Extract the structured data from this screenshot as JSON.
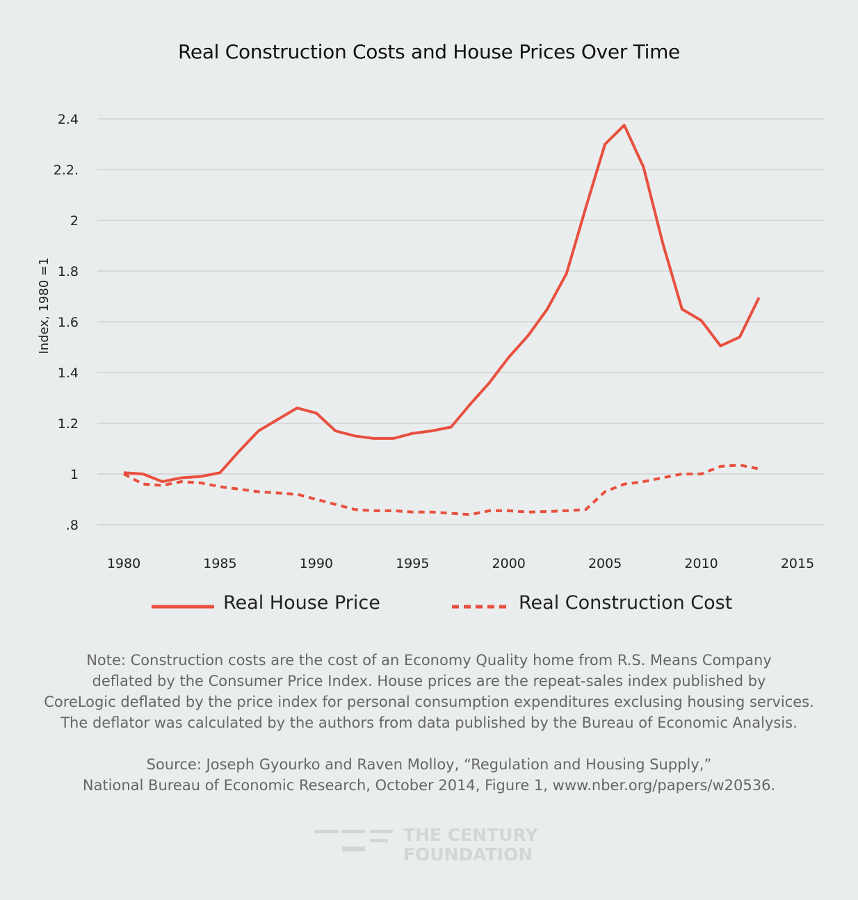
{
  "chart_data": {
    "type": "line",
    "title": "Real Construction Costs and House Prices Over Time",
    "xlabel": "",
    "ylabel": "Index, 1980 =1",
    "xlim": [
      1980,
      2015
    ],
    "ylim": [
      0.8,
      2.4
    ],
    "x_ticks": [
      "1980",
      "1985",
      "1990",
      "1995",
      "2000",
      "2005",
      "2010",
      "2015"
    ],
    "y_ticks": [
      {
        "value": 0.8,
        "label": ".8"
      },
      {
        "value": 1.0,
        "label": "1"
      },
      {
        "value": 1.2,
        "label": "1.2"
      },
      {
        "value": 1.4,
        "label": "1.4"
      },
      {
        "value": 1.6,
        "label": "1.6"
      },
      {
        "value": 1.8,
        "label": "1.8"
      },
      {
        "value": 2.0,
        "label": "2"
      },
      {
        "value": 2.2,
        "label": "2.2."
      },
      {
        "value": 2.4,
        "label": "2.4"
      }
    ],
    "grid": "horizontal",
    "legend_position": "bottom",
    "x": [
      1980,
      1981,
      1982,
      1983,
      1984,
      1985,
      1986,
      1987,
      1988,
      1989,
      1990,
      1991,
      1992,
      1993,
      1994,
      1995,
      1996,
      1997,
      1998,
      1999,
      2000,
      2001,
      2002,
      2003,
      2004,
      2005,
      2006,
      2007,
      2008,
      2009,
      2010,
      2011,
      2012,
      2013
    ],
    "series": [
      {
        "name": "Real House Price",
        "style": "solid",
        "color": "#e8503f",
        "values": [
          1.005,
          1.0,
          0.97,
          0.985,
          0.99,
          1.005,
          1.09,
          1.17,
          1.215,
          1.26,
          1.24,
          1.17,
          1.15,
          1.14,
          1.14,
          1.16,
          1.17,
          1.185,
          1.275,
          1.36,
          1.46,
          1.545,
          1.65,
          1.79,
          2.05,
          2.3,
          2.375,
          2.21,
          1.91,
          1.65,
          1.605,
          1.505,
          1.54,
          1.695
        ]
      },
      {
        "name": "Real Construction Cost",
        "style": "dashed",
        "color": "#e8503f",
        "values": [
          1.0,
          0.96,
          0.955,
          0.97,
          0.965,
          0.95,
          0.94,
          0.93,
          0.925,
          0.92,
          0.9,
          0.88,
          0.86,
          0.855,
          0.855,
          0.85,
          0.85,
          0.845,
          0.84,
          0.855,
          0.855,
          0.85,
          0.852,
          0.855,
          0.86,
          0.93,
          0.96,
          0.97,
          0.985,
          1.0,
          1.0,
          1.03,
          1.035,
          1.02
        ]
      }
    ]
  },
  "notes": {
    "note_lines": [
      "Note: Construction costs are the cost of an Economy Quality home from R.S. Means Company",
      "deflated by the Consumer Price Index. House prices are the repeat-sales index published by",
      "CoreLogic deflated by the price index for personal consumption expenditures exclusing housing services.",
      "The deflator was calculated by the authors from data published by the Bureau of Economic Analysis."
    ],
    "source_lines": [
      "Source: Joseph Gyourko and Raven Molloy, “Regulation and Housing Supply,”",
      "National Bureau of Economic Research, October 2014, Figure 1, www.nber.org/papers/w20536."
    ]
  },
  "logo": {
    "line1": "THE CENTURY",
    "line2": "FOUNDATION"
  }
}
